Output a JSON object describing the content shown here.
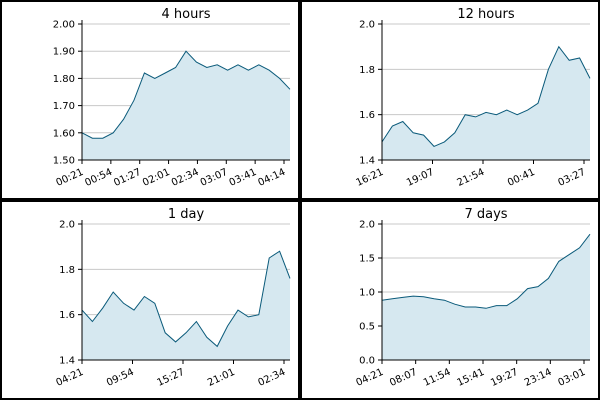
{
  "colors": {
    "line": "#0a5a7a",
    "fill": "#d6e8f0",
    "grid": "#c8c8c8",
    "axis": "#000000"
  },
  "chart_data": [
    {
      "type": "area",
      "title": "4 hours",
      "ylim": [
        1.5,
        2.0
      ],
      "yticks": [
        "1.50",
        "1.60",
        "1.70",
        "1.80",
        "1.90",
        "2.00"
      ],
      "xticks": [
        "00:21",
        "00:54",
        "01:27",
        "02:01",
        "02:34",
        "03:07",
        "03:41",
        "04:14"
      ],
      "grid": true,
      "x": [
        0,
        0.05,
        0.1,
        0.15,
        0.2,
        0.25,
        0.3,
        0.35,
        0.4,
        0.45,
        0.5,
        0.55,
        0.6,
        0.65,
        0.7,
        0.75,
        0.8,
        0.85,
        0.9,
        0.95,
        1.0
      ],
      "values": [
        1.6,
        1.58,
        1.58,
        1.6,
        1.65,
        1.72,
        1.82,
        1.8,
        1.82,
        1.84,
        1.9,
        1.86,
        1.84,
        1.85,
        1.83,
        1.85,
        1.83,
        1.85,
        1.83,
        1.8,
        1.76
      ]
    },
    {
      "type": "area",
      "title": "12 hours",
      "ylim": [
        1.4,
        2.0
      ],
      "yticks": [
        "1.4",
        "1.6",
        "1.8",
        "2.0"
      ],
      "xticks": [
        "16:21",
        "19:07",
        "21:54",
        "00:41",
        "03:27"
      ],
      "grid": true,
      "x": [
        0,
        0.05,
        0.1,
        0.15,
        0.2,
        0.25,
        0.3,
        0.35,
        0.4,
        0.45,
        0.5,
        0.55,
        0.6,
        0.65,
        0.7,
        0.75,
        0.8,
        0.85,
        0.9,
        0.95,
        1.0
      ],
      "values": [
        1.48,
        1.55,
        1.57,
        1.52,
        1.51,
        1.46,
        1.48,
        1.52,
        1.6,
        1.59,
        1.61,
        1.6,
        1.62,
        1.6,
        1.62,
        1.65,
        1.8,
        1.9,
        1.84,
        1.85,
        1.76
      ]
    },
    {
      "type": "area",
      "title": "1 day",
      "ylim": [
        1.4,
        2.0
      ],
      "yticks": [
        "1.4",
        "1.6",
        "1.8",
        "2.0"
      ],
      "xticks": [
        "04:21",
        "09:54",
        "15:27",
        "21:01",
        "02:34"
      ],
      "grid": true,
      "x": [
        0,
        0.05,
        0.1,
        0.15,
        0.2,
        0.25,
        0.3,
        0.35,
        0.4,
        0.45,
        0.5,
        0.55,
        0.6,
        0.65,
        0.7,
        0.75,
        0.8,
        0.85,
        0.9,
        0.95,
        1.0
      ],
      "values": [
        1.62,
        1.57,
        1.63,
        1.7,
        1.65,
        1.62,
        1.68,
        1.65,
        1.52,
        1.48,
        1.52,
        1.57,
        1.5,
        1.46,
        1.55,
        1.62,
        1.59,
        1.6,
        1.85,
        1.88,
        1.76
      ]
    },
    {
      "type": "area",
      "title": "7 days",
      "ylim": [
        0.0,
        2.0
      ],
      "yticks": [
        "0.0",
        "0.5",
        "1.0",
        "1.5",
        "2.0"
      ],
      "xticks": [
        "04:21",
        "08:07",
        "11:54",
        "15:41",
        "19:27",
        "23:14",
        "03:01"
      ],
      "grid": true,
      "x": [
        0,
        0.05,
        0.1,
        0.15,
        0.2,
        0.25,
        0.3,
        0.35,
        0.4,
        0.45,
        0.5,
        0.55,
        0.6,
        0.65,
        0.7,
        0.75,
        0.8,
        0.85,
        0.9,
        0.95,
        1.0
      ],
      "values": [
        0.88,
        0.9,
        0.92,
        0.94,
        0.93,
        0.9,
        0.88,
        0.82,
        0.78,
        0.78,
        0.76,
        0.8,
        0.8,
        0.9,
        1.05,
        1.08,
        1.2,
        1.45,
        1.55,
        1.65,
        1.85
      ]
    }
  ]
}
